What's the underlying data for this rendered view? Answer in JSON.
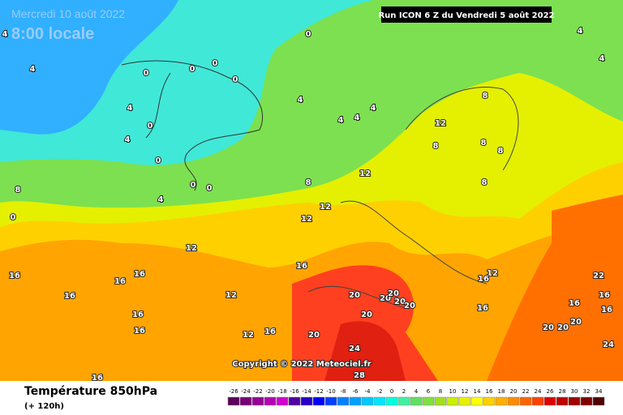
{
  "header": {
    "date": "Mercredi 10 août 2022",
    "time": "8:00 locale",
    "run": "Run ICON 6 Z du Vendredi 5 août 2022"
  },
  "copyright": "Copyright © 2022 Meteociel.fr",
  "legend": {
    "title": "Température 850hPa",
    "lead": "(+ 120h)",
    "ticks": [
      -26,
      -24,
      -22,
      -20,
      -18,
      -16,
      -14,
      -12,
      -10,
      -8,
      -6,
      -4,
      -2,
      0,
      2,
      4,
      6,
      8,
      10,
      12,
      14,
      16,
      18,
      20,
      22,
      24,
      26,
      28,
      30,
      32,
      34
    ],
    "colors": [
      "#5a005a",
      "#780078",
      "#960096",
      "#b400b4",
      "#d200d2",
      "#5000a0",
      "#2800c8",
      "#0000ff",
      "#0040ff",
      "#0080ff",
      "#00a0ff",
      "#00c8ff",
      "#00e6ff",
      "#00ffe0",
      "#40f0a0",
      "#60e060",
      "#80e040",
      "#a0e020",
      "#c8f000",
      "#e8f000",
      "#ffff00",
      "#ffd000",
      "#ffb000",
      "#ff8c00",
      "#ff6400",
      "#ff4000",
      "#e00000",
      "#c00000",
      "#a00000",
      "#800000",
      "#500000"
    ]
  },
  "contours": [
    0,
    0,
    0,
    0,
    0,
    0,
    0,
    0,
    0,
    0,
    4,
    4,
    4,
    4,
    4,
    4,
    4,
    4,
    4,
    4,
    4,
    8,
    8,
    8,
    8,
    8,
    8,
    8,
    12,
    12,
    12,
    12,
    12,
    12,
    12,
    12,
    16,
    16,
    16,
    16,
    16,
    16,
    16,
    16,
    16,
    16,
    16,
    16,
    16,
    16,
    20,
    20,
    20,
    20,
    20,
    20,
    20,
    20,
    20,
    20,
    22,
    24,
    24,
    28
  ]
}
